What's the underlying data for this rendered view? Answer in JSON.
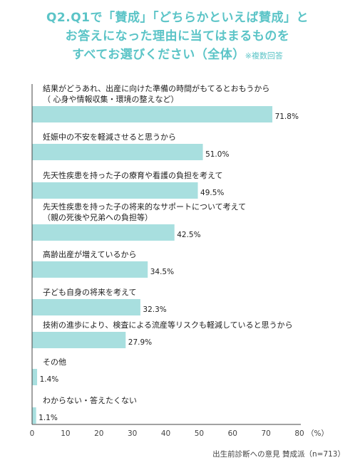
{
  "title": {
    "lines": [
      "Q2.Q1で「賛成」「どちらかといえば賛成」と",
      "お答えになった理由に当てはまるものを",
      "すべてお選びください（全体）"
    ],
    "note": "※複数回答"
  },
  "chart_data": {
    "type": "bar",
    "orientation": "horizontal",
    "categories": [
      [
        "結果がどうあれ、出産に向けた準備の時間がもてるとおもうから",
        "（ 心身や情報収集・環境の整えなど）"
      ],
      [
        "妊娠中の不安を軽減させると思うから"
      ],
      [
        "先天性疾患を持った子の療育や看護の負担を考えて"
      ],
      [
        "先天性疾患を持った子の将来的なサポートについて考えて",
        "（親の死後や兄弟への負担等）"
      ],
      [
        "高齢出産が増えているから"
      ],
      [
        "子ども自身の将来を考えて"
      ],
      [
        "技術の進歩により、検査による流産等リスクも軽減していると思うから"
      ],
      [
        "その他"
      ],
      [
        "わからない・答えたくない"
      ]
    ],
    "values": [
      71.8,
      51.0,
      49.5,
      42.5,
      34.5,
      32.3,
      27.9,
      1.4,
      1.1
    ],
    "value_labels": [
      "71.8%",
      "51.0%",
      "49.5%",
      "42.5%",
      "34.5%",
      "32.3%",
      "27.9%",
      "1.4%",
      "1.1%"
    ],
    "xlim": [
      0,
      80
    ],
    "xticks": [
      "0",
      "10",
      "20",
      "30",
      "40",
      "50",
      "60",
      "70",
      "80"
    ],
    "unit_label": "（%）",
    "grid": false,
    "bar_color": "#a8dfdf",
    "axis_color": "#444444"
  },
  "footer": "出生前診断への意見 賛成派（n=713）",
  "colors": {
    "title": "#5bc4c7"
  }
}
